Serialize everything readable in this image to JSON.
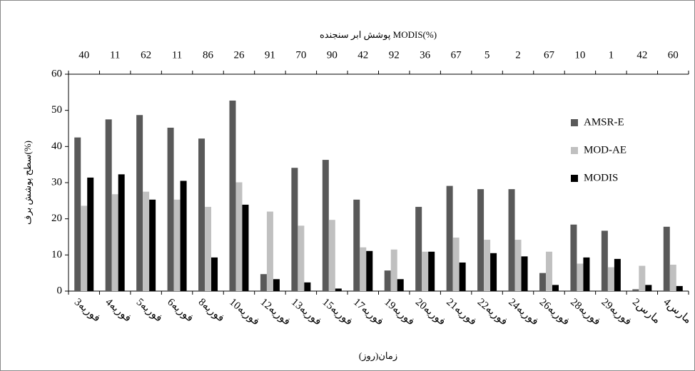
{
  "chart_data": {
    "type": "bar",
    "title": "پوشش ابر سنجنده MODIS(%)",
    "x_label": "زمان(روز)",
    "y_label": "سطح پوشش برف(%)",
    "categories": [
      "3فوریه",
      "4فوریه",
      "5فوریه",
      "6فوریه",
      "8فوریه",
      "10فوریه",
      "12فوریه",
      "13فوریه",
      "15فوریه",
      "17فوریه",
      "19فوریه",
      "20فوریه",
      "21فوریه",
      "22فوریه",
      "24فوریه",
      "26فوریه",
      "28فوریه",
      "29فوریه",
      "2مارس",
      "4مارس"
    ],
    "top_categories": [
      40,
      11,
      62,
      11,
      86,
      26,
      91,
      70,
      90,
      42,
      92,
      36,
      67,
      5,
      2,
      67,
      10,
      1,
      42,
      60
    ],
    "series": [
      {
        "name": "AMSR-E",
        "color": "#595959",
        "values": [
          42.5,
          47.5,
          48.7,
          45.2,
          42.2,
          52.7,
          4.7,
          34.1,
          36.3,
          25.3,
          5.7,
          23.3,
          29.1,
          28.2,
          28.2,
          5.0,
          18.4,
          16.7,
          0.5,
          17.8
        ]
      },
      {
        "name": "MOD-AE",
        "color": "#c0c0c0",
        "values": [
          23.6,
          26.8,
          27.5,
          25.3,
          23.3,
          30.1,
          22.0,
          18.1,
          19.7,
          12.1,
          11.5,
          10.9,
          14.8,
          14.2,
          14.2,
          10.9,
          7.6,
          6.6,
          7.0,
          7.3
        ]
      },
      {
        "name": "MODIS",
        "color": "#000000",
        "values": [
          31.4,
          32.3,
          25.3,
          30.5,
          9.3,
          23.9,
          3.3,
          2.4,
          0.7,
          11.1,
          3.3,
          10.9,
          7.9,
          10.5,
          9.6,
          1.7,
          9.3,
          8.9,
          1.7,
          1.4
        ]
      }
    ],
    "ylim": [
      0,
      60
    ],
    "yticks": [
      0,
      10,
      20,
      30,
      40,
      50,
      60
    ],
    "legend": "upper-right"
  }
}
